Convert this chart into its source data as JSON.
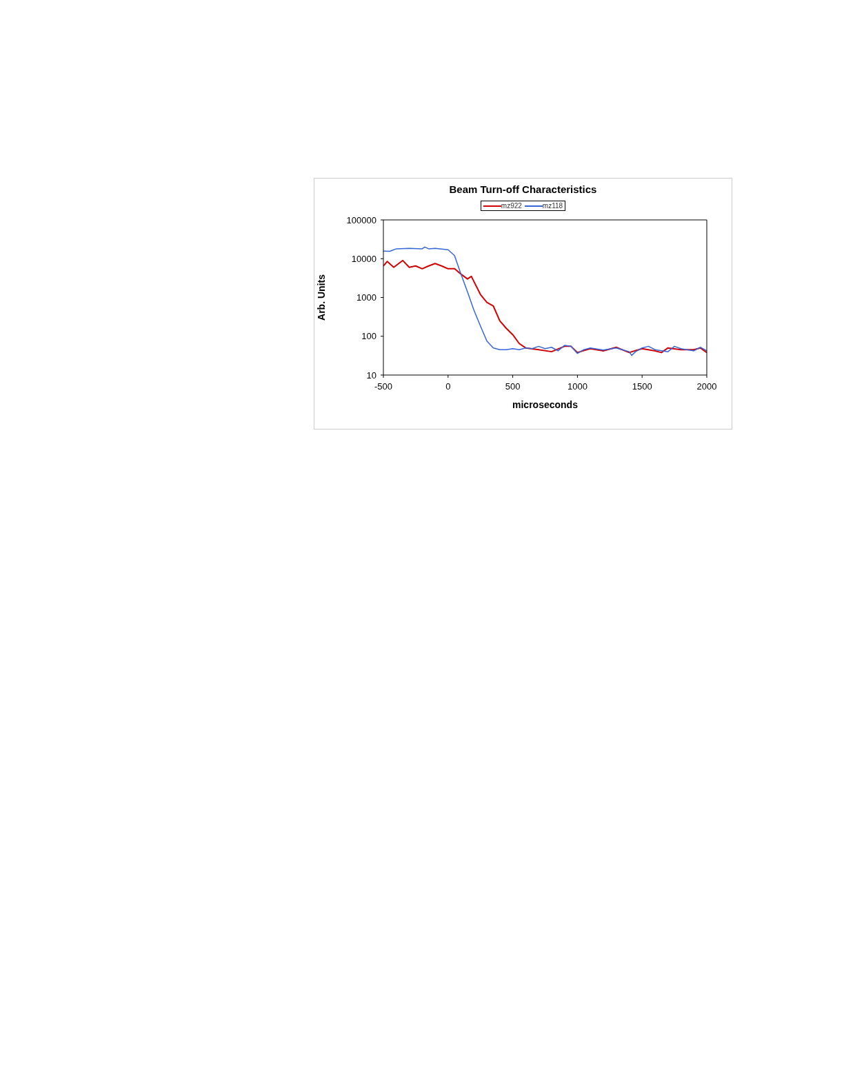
{
  "chart_data": {
    "type": "line",
    "title": "Beam Turn-off Characteristics",
    "xlabel": "microseconds",
    "ylabel": "Arb. Units",
    "log": "y",
    "xlim": [
      -500,
      2000
    ],
    "xticks": [
      -500,
      0,
      500,
      1000,
      1500,
      2000
    ],
    "ylim": [
      10,
      100000
    ],
    "yticks": [
      10,
      100,
      1000,
      10000,
      100000
    ],
    "legend": "top",
    "marker": "none",
    "line_style": "solid",
    "series": [
      {
        "name": "mz922",
        "color": "#d40000",
        "x": [
          -500,
          -470,
          -420,
          -350,
          -300,
          -250,
          -200,
          -150,
          -100,
          -50,
          0,
          50,
          100,
          150,
          180,
          250,
          300,
          350,
          400,
          450,
          500,
          550,
          600,
          700,
          800,
          900,
          950,
          1000,
          1100,
          1200,
          1300,
          1400,
          1500,
          1600,
          1650,
          1700,
          1800,
          1900,
          1950,
          2000
        ],
        "values": [
          6500,
          8500,
          6000,
          9000,
          6000,
          6500,
          5500,
          6500,
          7500,
          6500,
          5500,
          5500,
          4000,
          3000,
          3500,
          1200,
          750,
          600,
          250,
          160,
          110,
          65,
          50,
          45,
          40,
          55,
          55,
          38,
          48,
          42,
          52,
          38,
          48,
          42,
          38,
          50,
          45,
          45,
          50,
          38
        ]
      },
      {
        "name": "mz118",
        "color": "#3366dd",
        "x": [
          -500,
          -450,
          -400,
          -300,
          -200,
          -180,
          -150,
          -100,
          0,
          50,
          100,
          150,
          200,
          250,
          300,
          350,
          400,
          450,
          500,
          550,
          600,
          650,
          700,
          750,
          800,
          850,
          900,
          950,
          1000,
          1050,
          1100,
          1200,
          1300,
          1400,
          1420,
          1450,
          1500,
          1550,
          1600,
          1700,
          1750,
          1800,
          1900,
          1950,
          2000
        ],
        "values": [
          15700,
          15500,
          18000,
          18500,
          18000,
          20000,
          18000,
          18500,
          17000,
          12000,
          4000,
          1400,
          470,
          185,
          75,
          50,
          45,
          45,
          48,
          45,
          50,
          48,
          55,
          48,
          52,
          42,
          58,
          55,
          36,
          45,
          50,
          44,
          50,
          40,
          32,
          40,
          50,
          55,
          45,
          40,
          55,
          48,
          42,
          52,
          42
        ]
      }
    ]
  }
}
